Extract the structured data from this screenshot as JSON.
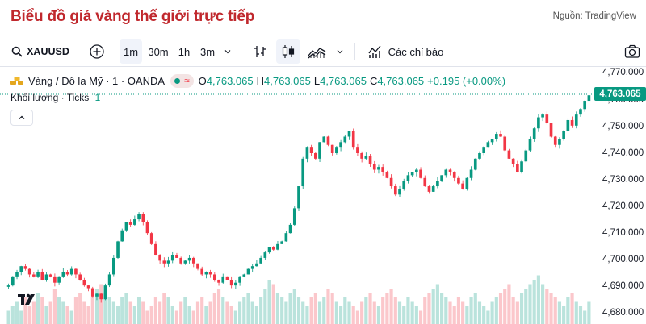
{
  "header": {
    "title": "Biểu đồ giá vàng thế giới trực tiếp",
    "source": "Nguồn: TradingView"
  },
  "toolbar": {
    "symbol": "XAUUSD",
    "intervals": [
      "1m",
      "30m",
      "1h",
      "3m"
    ],
    "active_interval": "1m",
    "indicators_label": "Các chỉ báo"
  },
  "legend": {
    "instrument": "Vàng / Đô la Mỹ · 1 · OANDA",
    "o_key": "O",
    "o_val": "4,763.065",
    "h_key": "H",
    "h_val": "4,763.065",
    "l_key": "L",
    "l_val": "4,763.065",
    "c_key": "C",
    "c_val": "4,763.065",
    "change": "+0.195 (+0.00%)",
    "volume_label": "Khối lượng · Ticks",
    "volume_value": "1"
  },
  "price_axis": {
    "ticks": [
      "4,770.000",
      "4,760.000",
      "4,750.000",
      "4,740.000",
      "4,730.000",
      "4,720.000",
      "4,710.000",
      "4,700.000",
      "4,690.000",
      "4,680.000"
    ],
    "current_price": "4,763.065"
  },
  "colors": {
    "up": "#089981",
    "down": "#f23645",
    "title": "#c0282d"
  },
  "chart_data": {
    "type": "candlestick",
    "ylim": [
      4680,
      4773
    ],
    "close_path": [
      4694,
      4697,
      4699,
      4701,
      4700,
      4698,
      4697,
      4699,
      4696,
      4698,
      4697,
      4695,
      4697,
      4699,
      4698,
      4700,
      4698,
      4696,
      4694,
      4693,
      4690,
      4691,
      4689,
      4694,
      4698,
      4704,
      4710,
      4714,
      4717,
      4716,
      4718,
      4720,
      4717,
      4713,
      4709,
      4705,
      4703,
      4702,
      4703,
      4705,
      4704,
      4702,
      4703,
      4704,
      4702,
      4700,
      4698,
      4699,
      4698,
      4696,
      4695,
      4697,
      4696,
      4694,
      4695,
      4697,
      4698,
      4700,
      4701,
      4702,
      4704,
      4706,
      4708,
      4707,
      4709,
      4710,
      4713,
      4716,
      4722,
      4730,
      4740,
      4744,
      4742,
      4740,
      4746,
      4748,
      4745,
      4742,
      4744,
      4746,
      4748,
      4750,
      4744,
      4742,
      4740,
      4741,
      4738,
      4736,
      4737,
      4735,
      4733,
      4730,
      4727,
      4729,
      4732,
      4734,
      4735,
      4736,
      4733,
      4730,
      4728,
      4730,
      4732,
      4734,
      4736,
      4735,
      4733,
      4731,
      4729,
      4733,
      4736,
      4740,
      4742,
      4744,
      4746,
      4747,
      4749,
      4748,
      4743,
      4740,
      4738,
      4735,
      4739,
      4743,
      4747,
      4751,
      4755,
      4756,
      4753,
      4748,
      4745,
      4747,
      4750,
      4754,
      4752,
      4756,
      4758,
      4761,
      4763
    ],
    "volume_profile": [
      3,
      4,
      5,
      3,
      6,
      4,
      5,
      7,
      6,
      4,
      5,
      8,
      6,
      5,
      4,
      3,
      6,
      7,
      5,
      4,
      6,
      8,
      9,
      7,
      6,
      5,
      4,
      6,
      7,
      5,
      4,
      6,
      5,
      3,
      4,
      6,
      5,
      7,
      6,
      4,
      3,
      5,
      6,
      4,
      3,
      5,
      6,
      4,
      5,
      7,
      8,
      6,
      5,
      4,
      3,
      5,
      6,
      7,
      5,
      4,
      6,
      8,
      10,
      9,
      7,
      6,
      5,
      7,
      8,
      6,
      5,
      4,
      6,
      7,
      5,
      6,
      8,
      7,
      5,
      4,
      6,
      5,
      4,
      3,
      5,
      6,
      7,
      5,
      4,
      6,
      7,
      8,
      6,
      5,
      4,
      6,
      5,
      4,
      3,
      6,
      7,
      8,
      9,
      7,
      6,
      5,
      4,
      6,
      5,
      4,
      6,
      7,
      5,
      4,
      3,
      5,
      6,
      7,
      8,
      9,
      6,
      5,
      7,
      8,
      9,
      10,
      11,
      9,
      8,
      7,
      6,
      5,
      4,
      6,
      7,
      5,
      4,
      3,
      5
    ]
  }
}
